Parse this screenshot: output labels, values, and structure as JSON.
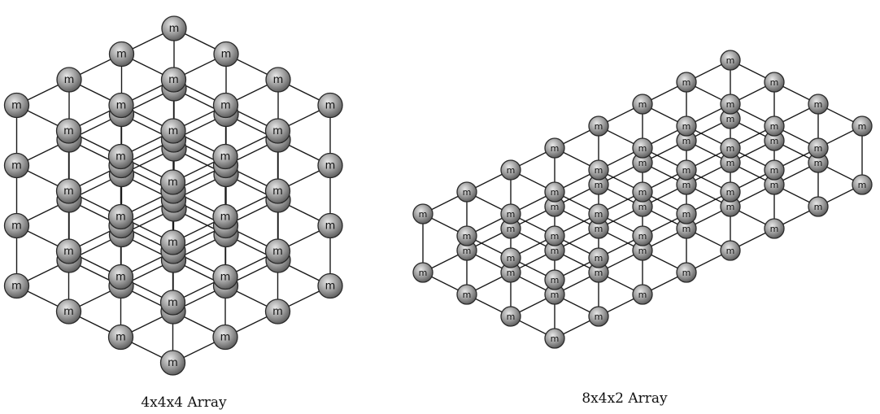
{
  "node_label": "m",
  "colors": {
    "node_fill_light": "#e8e8e8",
    "node_fill": "#9a9a9a",
    "node_fill_dark": "#555555",
    "node_stroke": "#2a2a2a",
    "edge": "#1a1a1a"
  },
  "arrays": [
    {
      "caption": "4x4x4 Array",
      "dims": [
        4,
        4,
        4
      ]
    },
    {
      "caption": "8x4x2 Array",
      "dims": [
        8,
        4,
        2
      ]
    }
  ]
}
